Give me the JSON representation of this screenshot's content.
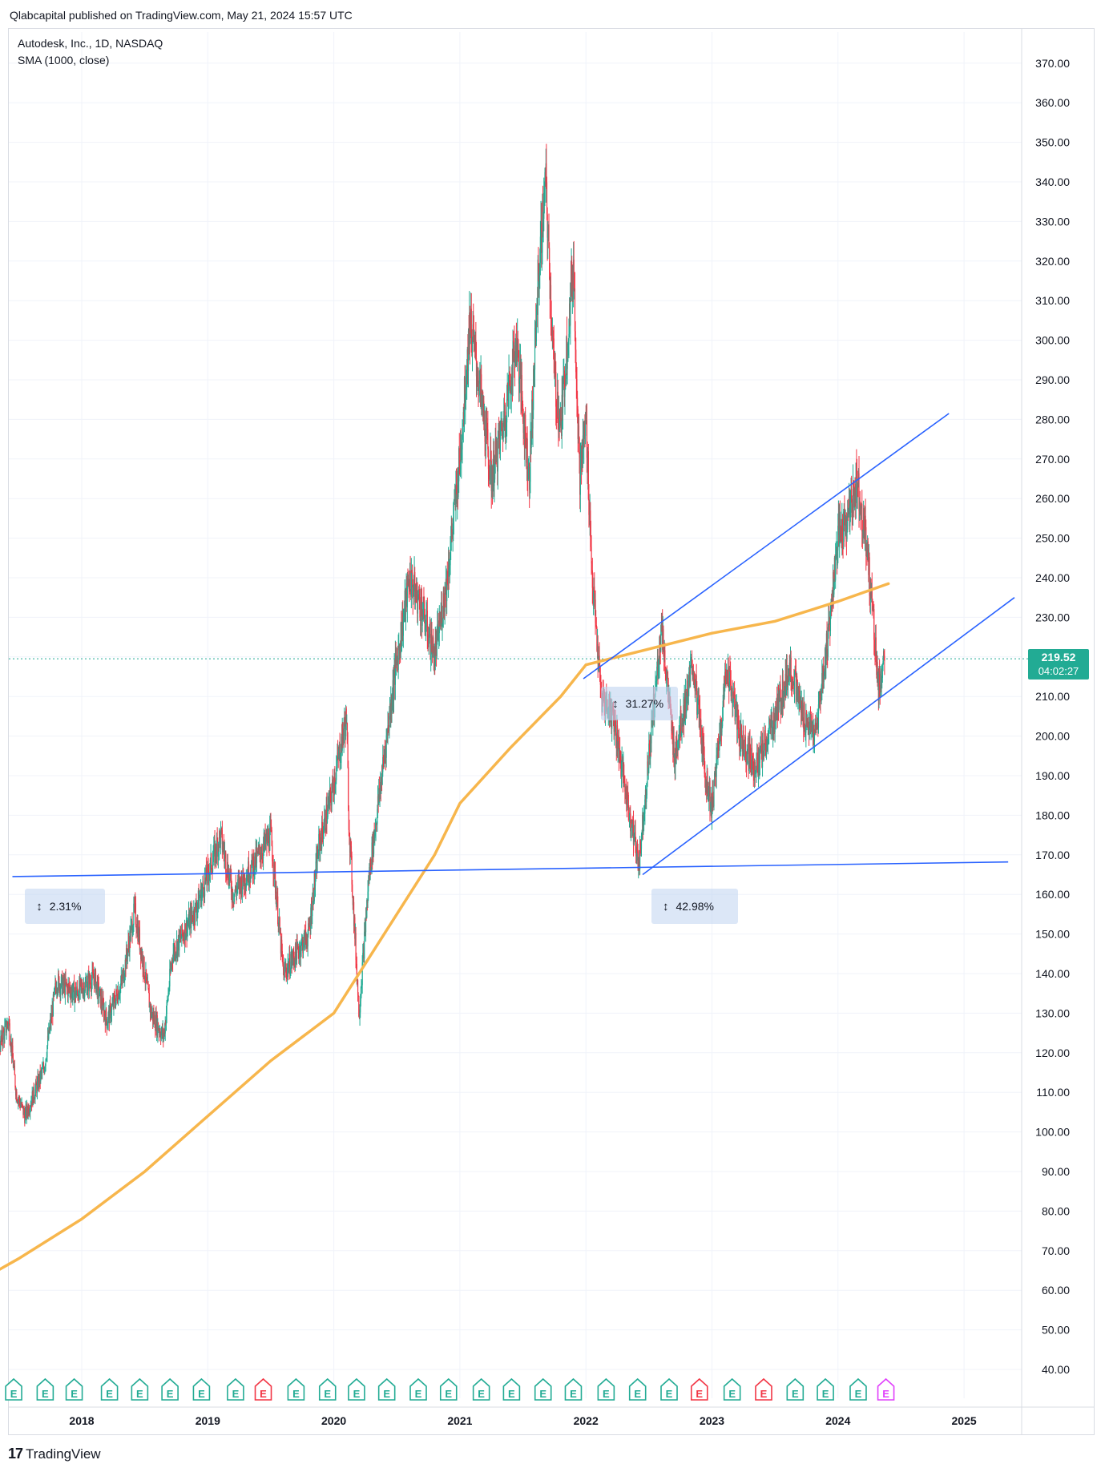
{
  "header": {
    "published_line": "Qlabcapital published on TradingView.com, May 21, 2024 15:57 UTC"
  },
  "legend": {
    "symbol_line": "Autodesk, Inc., 1D, NASDAQ",
    "indicator_line": "SMA (1000, close)"
  },
  "price_badge": {
    "price": "219.52",
    "countdown": "04:02:27",
    "color": "#22ab94"
  },
  "footer": {
    "brand": "TradingView"
  },
  "colors": {
    "up": "#22ab94",
    "down": "#f23645",
    "sma": "#f7b64c",
    "trendline": "#2962ff",
    "grid": "#f0f3fa",
    "earnings_green": "#22ab94",
    "earnings_red": "#f23645",
    "earnings_upcoming": "#e040fb"
  },
  "chart_data": {
    "type": "candlestick",
    "ylim": [
      35,
      378
    ],
    "y_ticks": [
      40,
      50,
      60,
      70,
      80,
      90,
      100,
      110,
      120,
      130,
      140,
      150,
      160,
      170,
      180,
      190,
      200,
      210,
      220,
      230,
      240,
      250,
      260,
      270,
      280,
      290,
      300,
      310,
      320,
      330,
      340,
      350,
      360,
      370
    ],
    "y_tick_labels": [
      "40.00",
      "50.00",
      "60.00",
      "70.00",
      "80.00",
      "90.00",
      "100.00",
      "110.00",
      "120.00",
      "130.00",
      "140.00",
      "150.00",
      "160.00",
      "170.00",
      "180.00",
      "190.00",
      "200.00",
      "210.00",
      "220.00",
      "230.00",
      "240.00",
      "250.00",
      "260.00",
      "270.00",
      "280.00",
      "290.00",
      "300.00",
      "310.00",
      "320.00",
      "330.00",
      "340.00",
      "350.00",
      "360.00",
      "370.00"
    ],
    "xlim": [
      2017.0,
      2025.55
    ],
    "x_ticks": [
      2018,
      2019,
      2020,
      2021,
      2022,
      2023,
      2024,
      2025
    ],
    "x_tick_labels": [
      "2018",
      "2019",
      "2020",
      "2021",
      "2022",
      "2023",
      "2024",
      "2025"
    ],
    "last_price": 219.52,
    "price_path": [
      [
        2017.0,
        110
      ],
      [
        2017.15,
        108
      ],
      [
        2017.3,
        118
      ],
      [
        2017.42,
        128
      ],
      [
        2017.48,
        110
      ],
      [
        2017.55,
        104
      ],
      [
        2017.7,
        116
      ],
      [
        2017.8,
        138
      ],
      [
        2017.95,
        135
      ],
      [
        2018.1,
        139
      ],
      [
        2018.2,
        128
      ],
      [
        2018.32,
        138
      ],
      [
        2018.42,
        156
      ],
      [
        2018.55,
        130
      ],
      [
        2018.65,
        124
      ],
      [
        2018.72,
        145
      ],
      [
        2018.9,
        156
      ],
      [
        2019.0,
        165
      ],
      [
        2019.1,
        175
      ],
      [
        2019.2,
        160
      ],
      [
        2019.35,
        167
      ],
      [
        2019.5,
        175
      ],
      [
        2019.6,
        140
      ],
      [
        2019.7,
        145
      ],
      [
        2019.8,
        150
      ],
      [
        2019.88,
        172
      ],
      [
        2019.98,
        185
      ],
      [
        2020.1,
        205
      ],
      [
        2020.12,
        178
      ],
      [
        2020.2,
        130
      ],
      [
        2020.28,
        165
      ],
      [
        2020.38,
        190
      ],
      [
        2020.48,
        215
      ],
      [
        2020.6,
        240
      ],
      [
        2020.7,
        232
      ],
      [
        2020.8,
        220
      ],
      [
        2020.9,
        240
      ],
      [
        2021.0,
        270
      ],
      [
        2021.08,
        305
      ],
      [
        2021.15,
        290
      ],
      [
        2021.25,
        265
      ],
      [
        2021.35,
        280
      ],
      [
        2021.45,
        300
      ],
      [
        2021.55,
        265
      ],
      [
        2021.62,
        315
      ],
      [
        2021.68,
        340
      ],
      [
        2021.75,
        290
      ],
      [
        2021.8,
        278
      ],
      [
        2021.9,
        320
      ],
      [
        2021.95,
        265
      ],
      [
        2022.0,
        280
      ],
      [
        2022.05,
        240
      ],
      [
        2022.12,
        210
      ],
      [
        2022.22,
        205
      ],
      [
        2022.32,
        185
      ],
      [
        2022.42,
        168
      ],
      [
        2022.5,
        195
      ],
      [
        2022.6,
        228
      ],
      [
        2022.7,
        195
      ],
      [
        2022.85,
        218
      ],
      [
        2022.95,
        190
      ],
      [
        2023.0,
        182
      ],
      [
        2023.12,
        218
      ],
      [
        2023.22,
        200
      ],
      [
        2023.35,
        192
      ],
      [
        2023.45,
        200
      ],
      [
        2023.55,
        210
      ],
      [
        2023.62,
        218
      ],
      [
        2023.72,
        205
      ],
      [
        2023.82,
        200
      ],
      [
        2023.92,
        225
      ],
      [
        2024.0,
        250
      ],
      [
        2024.08,
        255
      ],
      [
        2024.15,
        265
      ],
      [
        2024.22,
        250
      ],
      [
        2024.28,
        230
      ],
      [
        2024.32,
        212
      ],
      [
        2024.37,
        220
      ]
    ],
    "sma_path": [
      [
        2017.0,
        59
      ],
      [
        2017.5,
        68
      ],
      [
        2018.0,
        78
      ],
      [
        2018.5,
        90
      ],
      [
        2019.0,
        104
      ],
      [
        2019.5,
        118
      ],
      [
        2020.0,
        130
      ],
      [
        2020.4,
        150
      ],
      [
        2020.8,
        170
      ],
      [
        2021.0,
        183
      ],
      [
        2021.4,
        197
      ],
      [
        2021.8,
        210
      ],
      [
        2022.0,
        218
      ],
      [
        2022.5,
        222
      ],
      [
        2023.0,
        226
      ],
      [
        2023.5,
        229
      ],
      [
        2024.0,
        234
      ],
      [
        2024.4,
        238.5
      ]
    ],
    "trendlines": [
      {
        "from": [
          2017.45,
          164.5
        ],
        "to": [
          2025.35,
          168.2
        ]
      },
      {
        "from": [
          2021.98,
          214.5
        ],
        "to": [
          2024.88,
          281.5
        ]
      },
      {
        "from": [
          2022.45,
          165
        ],
        "to": [
          2025.4,
          235
        ]
      }
    ],
    "measurements": [
      {
        "label": "2.31%",
        "x": 2017.55,
        "y": 157
      },
      {
        "label": "42.98%",
        "x": 2022.52,
        "y": 157
      },
      {
        "label": "31.27%",
        "x": 2022.12,
        "y": 208
      }
    ],
    "earnings": [
      {
        "x": 2017.23,
        "status": "beat"
      },
      {
        "x": 2017.46,
        "status": "beat"
      },
      {
        "x": 2017.71,
        "status": "beat"
      },
      {
        "x": 2017.94,
        "status": "beat"
      },
      {
        "x": 2018.22,
        "status": "beat"
      },
      {
        "x": 2018.46,
        "status": "beat"
      },
      {
        "x": 2018.7,
        "status": "beat"
      },
      {
        "x": 2018.95,
        "status": "beat"
      },
      {
        "x": 2019.22,
        "status": "beat"
      },
      {
        "x": 2019.44,
        "status": "miss"
      },
      {
        "x": 2019.7,
        "status": "beat"
      },
      {
        "x": 2019.95,
        "status": "beat"
      },
      {
        "x": 2020.18,
        "status": "beat"
      },
      {
        "x": 2020.42,
        "status": "beat"
      },
      {
        "x": 2020.67,
        "status": "beat"
      },
      {
        "x": 2020.91,
        "status": "beat"
      },
      {
        "x": 2021.17,
        "status": "beat"
      },
      {
        "x": 2021.41,
        "status": "beat"
      },
      {
        "x": 2021.66,
        "status": "beat"
      },
      {
        "x": 2021.9,
        "status": "beat"
      },
      {
        "x": 2022.16,
        "status": "beat"
      },
      {
        "x": 2022.41,
        "status": "beat"
      },
      {
        "x": 2022.66,
        "status": "beat"
      },
      {
        "x": 2022.9,
        "status": "miss"
      },
      {
        "x": 2023.16,
        "status": "beat"
      },
      {
        "x": 2023.41,
        "status": "miss"
      },
      {
        "x": 2023.66,
        "status": "beat"
      },
      {
        "x": 2023.9,
        "status": "beat"
      },
      {
        "x": 2024.16,
        "status": "beat"
      },
      {
        "x": 2024.38,
        "status": "upcoming"
      }
    ],
    "earnings_label": "E"
  }
}
